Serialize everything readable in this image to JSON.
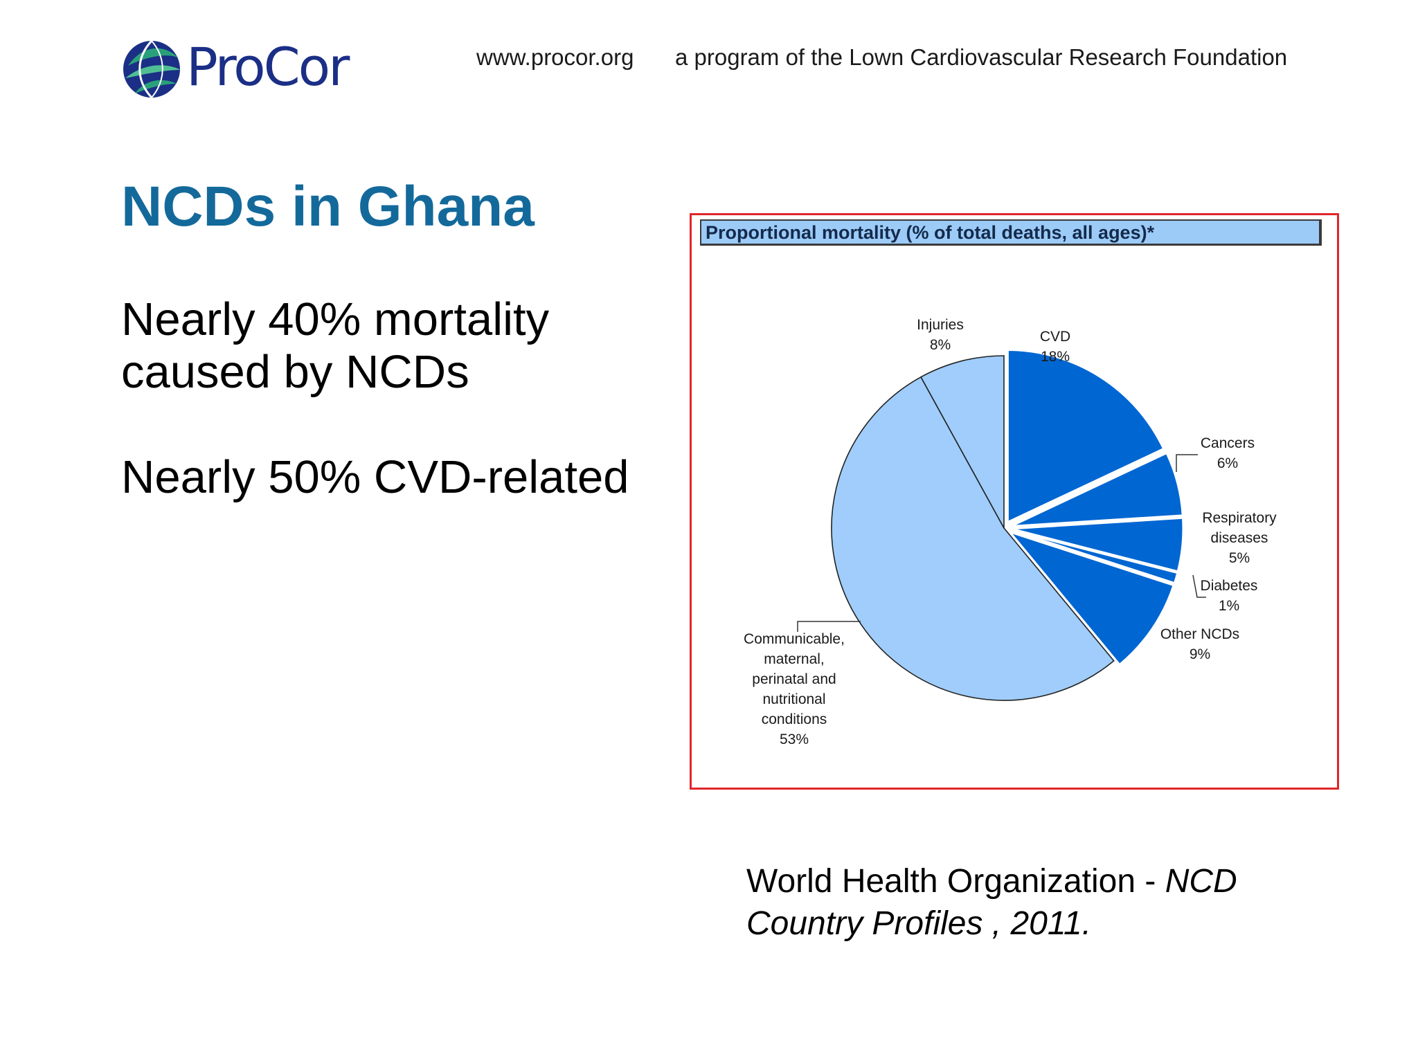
{
  "header": {
    "brand": "ProCor",
    "url": "www.procor.org",
    "program": "a program of the Lown Cardiovascular Research Foundation"
  },
  "slide": {
    "title": "NCDs in Ghana",
    "line1": "Nearly 40% mortality",
    "line2": "caused by NCDs",
    "line3": "Nearly 50% CVD-related",
    "source_plain": "World Health Organization - ",
    "source_italic_1": "NCD",
    "source_italic_2": "Country Profiles , 2011."
  },
  "colors": {
    "title": "#14699b",
    "ncd_slices": "#0066d2",
    "other_slices": "#a0cdfb",
    "frame": "#e0262b",
    "chart_title_bg": "#9ccbf8"
  },
  "chart_data": {
    "type": "pie",
    "title": "Proportional mortality (% of total deaths, all ages)*",
    "slices": [
      {
        "lines": [
          "CVD",
          "18%"
        ],
        "value": 18,
        "group": "ncd"
      },
      {
        "lines": [
          "Cancers",
          "6%"
        ],
        "value": 6,
        "group": "ncd"
      },
      {
        "lines": [
          "Respiratory",
          "diseases",
          "5%"
        ],
        "value": 5,
        "group": "ncd"
      },
      {
        "lines": [
          "Diabetes",
          "1%"
        ],
        "value": 1,
        "group": "ncd"
      },
      {
        "lines": [
          "Other NCDs",
          "9%"
        ],
        "value": 9,
        "group": "ncd"
      },
      {
        "lines": [
          "Communicable,",
          "maternal,",
          "perinatal and",
          "nutritional",
          "conditions",
          "53%"
        ],
        "value": 53,
        "group": "other"
      },
      {
        "lines": [
          "Injuries",
          "8%"
        ],
        "value": 8,
        "group": "other"
      }
    ]
  }
}
